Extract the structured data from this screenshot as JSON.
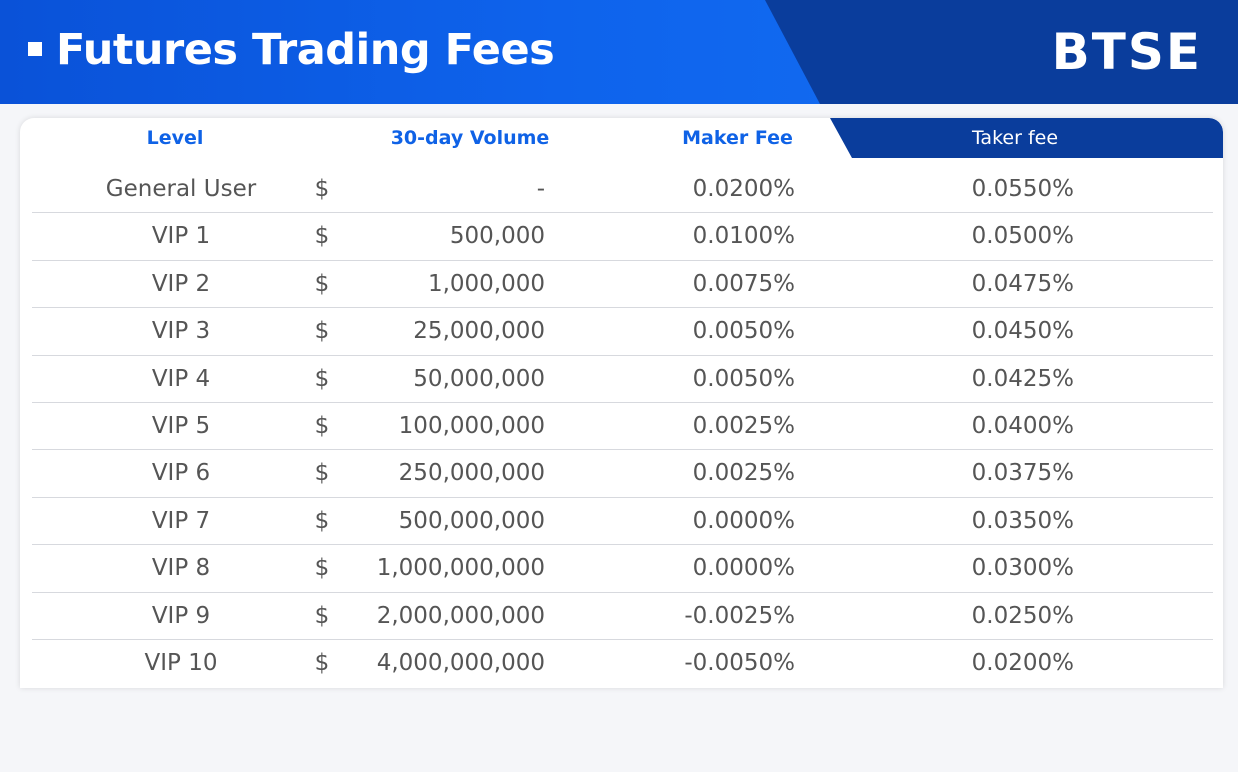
{
  "header": {
    "title": "Futures Trading Fees",
    "brand": "BTSE"
  },
  "table": {
    "columns": {
      "level": "Level",
      "volume": "30-day Volume",
      "maker": "Maker Fee",
      "taker": "Taker fee"
    },
    "currency_symbol": "$",
    "rows": [
      {
        "level": "General User",
        "volume": "-",
        "maker": "0.0200%",
        "taker": "0.0550%"
      },
      {
        "level": "VIP 1",
        "volume": "500,000",
        "maker": "0.0100%",
        "taker": "0.0500%"
      },
      {
        "level": "VIP 2",
        "volume": "1,000,000",
        "maker": "0.0075%",
        "taker": "0.0475%"
      },
      {
        "level": "VIP 3",
        "volume": "25,000,000",
        "maker": "0.0050%",
        "taker": "0.0450%"
      },
      {
        "level": "VIP 4",
        "volume": "50,000,000",
        "maker": "0.0050%",
        "taker": "0.0425%"
      },
      {
        "level": "VIP 5",
        "volume": "100,000,000",
        "maker": "0.0025%",
        "taker": "0.0400%"
      },
      {
        "level": "VIP 6",
        "volume": "250,000,000",
        "maker": "0.0025%",
        "taker": "0.0375%"
      },
      {
        "level": "VIP 7",
        "volume": "500,000,000",
        "maker": "0.0000%",
        "taker": "0.0350%"
      },
      {
        "level": "VIP 8",
        "volume": "1,000,000,000",
        "maker": "0.0000%",
        "taker": "0.0300%"
      },
      {
        "level": "VIP 9",
        "volume": "2,000,000,000",
        "maker": "-0.0025%",
        "taker": "0.0250%"
      },
      {
        "level": "VIP 10",
        "volume": "4,000,000,000",
        "maker": "-0.0050%",
        "taker": "0.0200%"
      }
    ]
  },
  "colors": {
    "banner_blue": "#0e63ec",
    "banner_dark": "#0a3d9c",
    "header_text": "#0f62e6",
    "cell_text": "#555555"
  }
}
